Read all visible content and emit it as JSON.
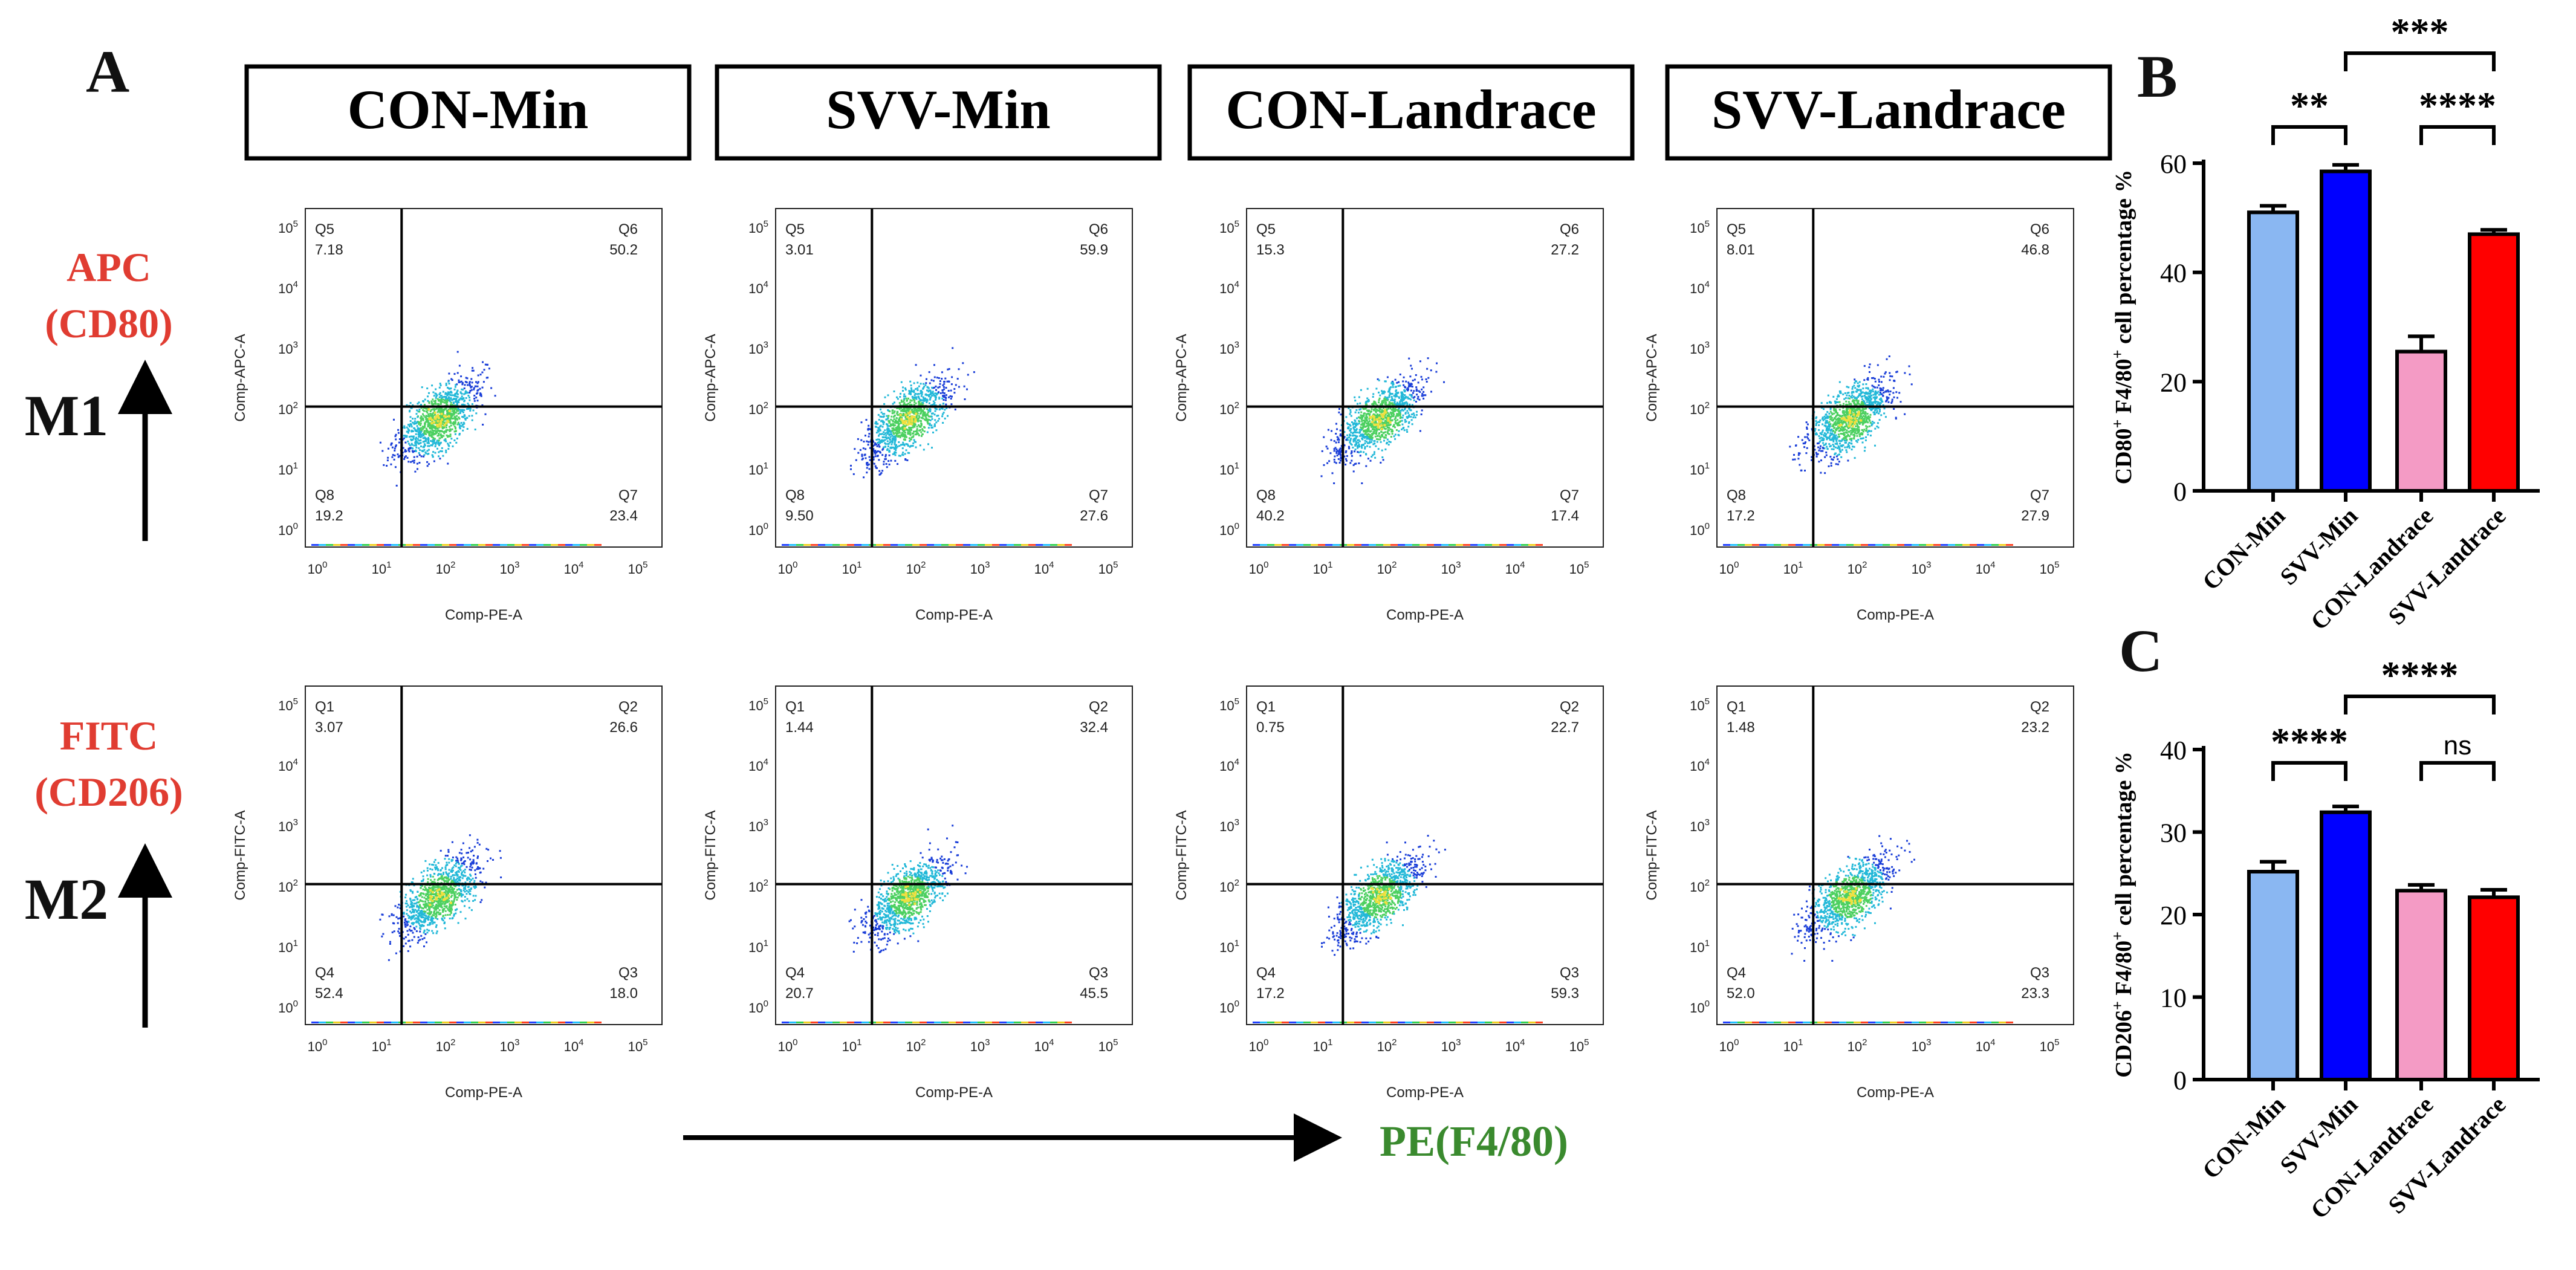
{
  "panel_letters": {
    "a": "A",
    "b": "B",
    "c": "C"
  },
  "columns": [
    "CON-Min",
    "SVV-Min",
    "CON-Landrace",
    "SVV-Landrace"
  ],
  "rows": [
    {
      "marker": "APC",
      "target": "(CD80)",
      "phenotype": "M1",
      "y_axis_label": "Comp-APC-A"
    },
    {
      "marker": "FITC",
      "target": "(CD206)",
      "phenotype": "M2",
      "y_axis_label": "Comp-FITC-A"
    }
  ],
  "x_axis_label": "Comp-PE-A",
  "x_arrow_label": "PE(F4/80)",
  "colors": {
    "red_label": "#e03c31",
    "green_label": "#3a8a2e",
    "light_blue": "#8ab7f2",
    "blue": "#0000ff",
    "pink": "#f49bc5",
    "red": "#ff0000"
  },
  "flow_plots": [
    [
      {
        "quadrants": [
          {
            "name": "Q5",
            "value": "7.18"
          },
          {
            "name": "Q6",
            "value": "50.2"
          },
          {
            "name": "Q8",
            "value": "19.2"
          },
          {
            "name": "Q7",
            "value": "23.4"
          }
        ]
      },
      {
        "quadrants": [
          {
            "name": "Q5",
            "value": "3.01"
          },
          {
            "name": "Q6",
            "value": "59.9"
          },
          {
            "name": "Q8",
            "value": "9.50"
          },
          {
            "name": "Q7",
            "value": "27.6"
          }
        ]
      },
      {
        "quadrants": [
          {
            "name": "Q5",
            "value": "15.3"
          },
          {
            "name": "Q6",
            "value": "27.2"
          },
          {
            "name": "Q8",
            "value": "40.2"
          },
          {
            "name": "Q7",
            "value": "17.4"
          }
        ]
      },
      {
        "quadrants": [
          {
            "name": "Q5",
            "value": "8.01"
          },
          {
            "name": "Q6",
            "value": "46.8"
          },
          {
            "name": "Q8",
            "value": "17.2"
          },
          {
            "name": "Q7",
            "value": "27.9"
          }
        ]
      }
    ],
    [
      {
        "quadrants": [
          {
            "name": "Q1",
            "value": "3.07"
          },
          {
            "name": "Q2",
            "value": "26.6"
          },
          {
            "name": "Q4",
            "value": "52.4"
          },
          {
            "name": "Q3",
            "value": "18.0"
          }
        ]
      },
      {
        "quadrants": [
          {
            "name": "Q1",
            "value": "1.44"
          },
          {
            "name": "Q2",
            "value": "32.4"
          },
          {
            "name": "Q4",
            "value": "20.7"
          },
          {
            "name": "Q3",
            "value": "45.5"
          }
        ]
      },
      {
        "quadrants": [
          {
            "name": "Q1",
            "value": "0.75"
          },
          {
            "name": "Q2",
            "value": "22.7"
          },
          {
            "name": "Q4",
            "value": "17.2"
          },
          {
            "name": "Q3",
            "value": "59.3"
          }
        ]
      },
      {
        "quadrants": [
          {
            "name": "Q1",
            "value": "1.48"
          },
          {
            "name": "Q2",
            "value": "23.2"
          },
          {
            "name": "Q4",
            "value": "52.0"
          },
          {
            "name": "Q3",
            "value": "23.3"
          }
        ]
      }
    ]
  ],
  "flow_axis": {
    "tick_base": "10",
    "tick_exponents": [
      "0",
      "1",
      "2",
      "3",
      "4",
      "5"
    ]
  },
  "chart_data": [
    {
      "type": "bar",
      "panel": "B",
      "categories": [
        "CON-Min",
        "SVV-Min",
        "CON-Landrace",
        "SVV-Landrace"
      ],
      "values": [
        51,
        58.5,
        25.5,
        47
      ],
      "errors": [
        1.2,
        1.2,
        2.8,
        0.8
      ],
      "ylabel": "CD80+ F4/80+ cell percentage %",
      "ylabel_parts": {
        "a": "CD80",
        "sup1": "+",
        "b": " F4/80",
        "sup2": "+",
        "c": " cell percentage %"
      },
      "ylim": [
        0,
        60
      ],
      "yticks": [
        "0",
        "20",
        "40",
        "60"
      ],
      "significance": [
        {
          "from": 0,
          "to": 1,
          "label": "**"
        },
        {
          "from": 1,
          "to": 3,
          "label": "***"
        },
        {
          "from": 2,
          "to": 3,
          "label": "****"
        }
      ]
    },
    {
      "type": "bar",
      "panel": "C",
      "categories": [
        "CON-Min",
        "SVV-Min",
        "CON-Landrace",
        "SVV-Landrace"
      ],
      "values": [
        25.2,
        32.4,
        22.9,
        22.1
      ],
      "errors": [
        1.2,
        0.7,
        0.7,
        0.9
      ],
      "ylabel": "CD206+ F4/80+ cell percentage %",
      "ylabel_parts": {
        "a": "CD206",
        "sup1": "+",
        "b": " F4/80",
        "sup2": "+",
        "c": " cell percentage %"
      },
      "ylim": [
        0,
        40
      ],
      "yticks": [
        "0",
        "10",
        "20",
        "30",
        "40"
      ],
      "significance": [
        {
          "from": 0,
          "to": 1,
          "label": "****"
        },
        {
          "from": 1,
          "to": 3,
          "label": "****"
        },
        {
          "from": 2,
          "to": 3,
          "label": "ns"
        }
      ]
    }
  ]
}
